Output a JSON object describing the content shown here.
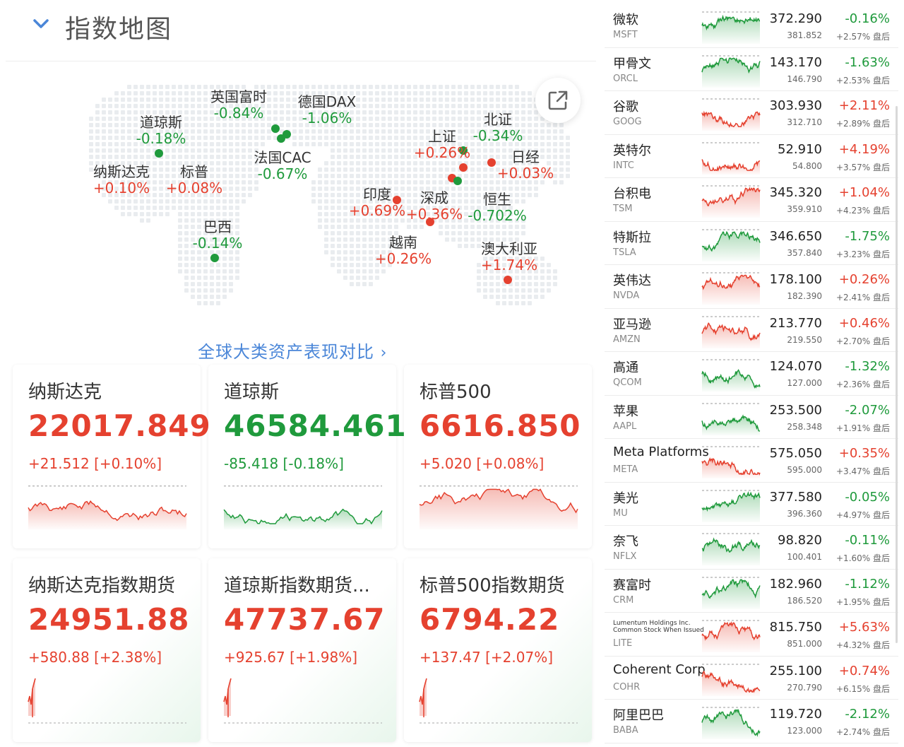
{
  "header": {
    "title": "指数地图",
    "chevron_icon": "chevron-down-icon"
  },
  "map": {
    "share_icon": "share-external-icon",
    "markets": [
      {
        "id": "ftse",
        "name": "英国富时",
        "pct": "-0.84%",
        "trend": "down"
      },
      {
        "id": "dax",
        "name": "德国DAX",
        "pct": "-1.06%",
        "trend": "down"
      },
      {
        "id": "dow",
        "name": "道琼斯",
        "pct": "-0.18%",
        "trend": "down"
      },
      {
        "id": "cac",
        "name": "法国CAC",
        "pct": "-0.67%",
        "trend": "down"
      },
      {
        "id": "nasdaq",
        "name": "纳斯达克",
        "pct": "+0.10%",
        "trend": "up"
      },
      {
        "id": "sp",
        "name": "标普",
        "pct": "+0.08%",
        "trend": "up"
      },
      {
        "id": "brazil",
        "name": "巴西",
        "pct": "-0.14%",
        "trend": "down"
      },
      {
        "id": "bj",
        "name": "北证",
        "pct": "-0.34%",
        "trend": "down"
      },
      {
        "id": "sh",
        "name": "上证",
        "pct": "+0.26%",
        "trend": "up"
      },
      {
        "id": "nikkei",
        "name": "日经",
        "pct": "+0.03%",
        "trend": "up"
      },
      {
        "id": "india",
        "name": "印度",
        "pct": "+0.69%",
        "trend": "up"
      },
      {
        "id": "sz",
        "name": "深成",
        "pct": "+0.36%",
        "trend": "up"
      },
      {
        "id": "hs",
        "name": "恒生",
        "pct": "-0.702%",
        "trend": "down"
      },
      {
        "id": "vn",
        "name": "越南",
        "pct": "+0.26%",
        "trend": "up"
      },
      {
        "id": "au",
        "name": "澳大利亚",
        "pct": "+1.74%",
        "trend": "up"
      }
    ],
    "compare_link": "全球大类资产表现对比"
  },
  "index_cards": [
    {
      "name": "纳斯达克",
      "value": "22017.849",
      "change": "+21.512 [+0.10%]",
      "trend": "up"
    },
    {
      "name": "道琼斯",
      "value": "46584.461",
      "change": "-85.418 [-0.18%]",
      "trend": "down"
    },
    {
      "name": "标普500",
      "value": "6616.850",
      "change": "+5.020 [+0.08%]",
      "trend": "up"
    }
  ],
  "futures_cards": [
    {
      "name": "纳斯达克指数期货",
      "value": "24951.88",
      "change": "+580.88 [+2.38%]",
      "trend": "up"
    },
    {
      "name": "道琼斯指数期货...",
      "value": "47737.67",
      "change": "+925.67 [+1.98%]",
      "trend": "up"
    },
    {
      "name": "标普500指数期货",
      "value": "6794.22",
      "change": "+137.47 [+2.07%]",
      "trend": "up"
    }
  ],
  "stocks": [
    {
      "name": "微软",
      "ticker": "MSFT",
      "price": "372.290",
      "pct": "-0.16%",
      "pre_price": "381.852",
      "pre_pct": "+2.57% 盘后",
      "trend": "down"
    },
    {
      "name": "甲骨文",
      "ticker": "ORCL",
      "price": "143.170",
      "pct": "-1.63%",
      "pre_price": "146.790",
      "pre_pct": "+2.53% 盘后",
      "trend": "down"
    },
    {
      "name": "谷歌",
      "ticker": "GOOG",
      "price": "303.930",
      "pct": "+2.11%",
      "pre_price": "312.710",
      "pre_pct": "+2.89% 盘后",
      "trend": "up"
    },
    {
      "name": "英特尔",
      "ticker": "INTC",
      "price": "52.910",
      "pct": "+4.19%",
      "pre_price": "54.800",
      "pre_pct": "+3.57% 盘后",
      "trend": "up"
    },
    {
      "name": "台积电",
      "ticker": "TSM",
      "price": "345.320",
      "pct": "+1.04%",
      "pre_price": "359.910",
      "pre_pct": "+4.23% 盘后",
      "trend": "up"
    },
    {
      "name": "特斯拉",
      "ticker": "TSLA",
      "price": "346.650",
      "pct": "-1.75%",
      "pre_price": "357.840",
      "pre_pct": "+3.23% 盘后",
      "trend": "down"
    },
    {
      "name": "英伟达",
      "ticker": "NVDA",
      "price": "178.100",
      "pct": "+0.26%",
      "pre_price": "182.390",
      "pre_pct": "+2.41% 盘后",
      "trend": "up"
    },
    {
      "name": "亚马逊",
      "ticker": "AMZN",
      "price": "213.770",
      "pct": "+0.46%",
      "pre_price": "219.550",
      "pre_pct": "+2.70% 盘后",
      "trend": "up"
    },
    {
      "name": "高通",
      "ticker": "QCOM",
      "price": "124.070",
      "pct": "-1.32%",
      "pre_price": "127.000",
      "pre_pct": "+2.36% 盘后",
      "trend": "down"
    },
    {
      "name": "苹果",
      "ticker": "AAPL",
      "price": "253.500",
      "pct": "-2.07%",
      "pre_price": "258.348",
      "pre_pct": "+1.91% 盘后",
      "trend": "down"
    },
    {
      "name": "Meta Platforms",
      "ticker": "META",
      "price": "575.050",
      "pct": "+0.35%",
      "pre_price": "595.000",
      "pre_pct": "+3.47% 盘后",
      "trend": "up"
    },
    {
      "name": "美光",
      "ticker": "MU",
      "price": "377.580",
      "pct": "-0.05%",
      "pre_price": "396.360",
      "pre_pct": "+4.97% 盘后",
      "trend": "down"
    },
    {
      "name": "奈飞",
      "ticker": "NFLX",
      "price": "98.820",
      "pct": "-0.11%",
      "pre_price": "100.401",
      "pre_pct": "+1.60% 盘后",
      "trend": "down"
    },
    {
      "name": "赛富时",
      "ticker": "CRM",
      "price": "182.960",
      "pct": "-1.12%",
      "pre_price": "186.520",
      "pre_pct": "+1.95% 盘后",
      "trend": "down"
    },
    {
      "name": "Lumentum Holdings Inc. Common Stock When Issued",
      "ticker": "LITE",
      "price": "815.750",
      "pct": "+5.63%",
      "pre_price": "851.000",
      "pre_pct": "+4.32% 盘后",
      "trend": "up"
    },
    {
      "name": "Coherent Corp",
      "ticker": "COHR",
      "price": "255.100",
      "pct": "+0.74%",
      "pre_price": "270.790",
      "pre_pct": "+6.15% 盘后",
      "trend": "up"
    },
    {
      "name": "阿里巴巴",
      "ticker": "BABA",
      "price": "119.720",
      "pct": "-2.12%",
      "pre_price": "123.000",
      "pre_pct": "+2.74% 盘后",
      "trend": "down"
    }
  ],
  "colors": {
    "up": "#e5412f",
    "down": "#1f9a3c",
    "link": "#4a86d8"
  }
}
